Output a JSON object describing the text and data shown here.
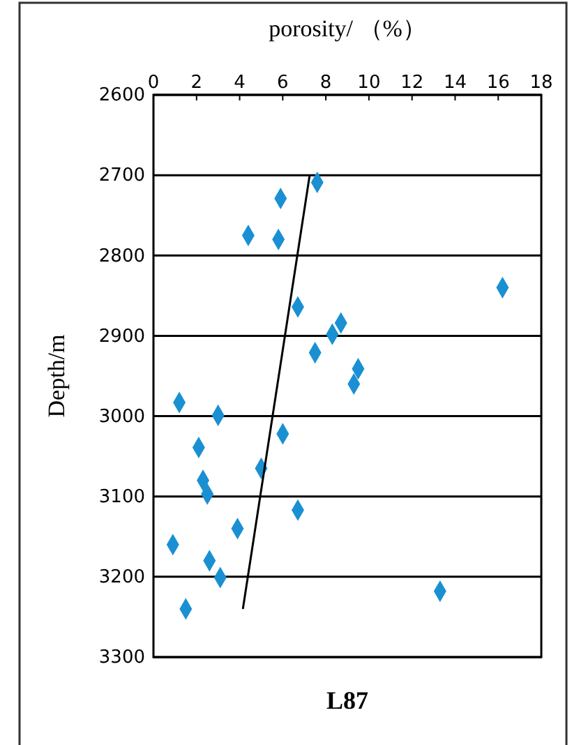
{
  "chart_data": {
    "type": "scatter",
    "title": "L87",
    "xlabel": "porosity/ （%）",
    "ylabel": "Depth/m",
    "xlim": [
      0,
      18
    ],
    "xticks": [
      0,
      2,
      4,
      6,
      8,
      10,
      12,
      14,
      16,
      18
    ],
    "ylim": [
      3300,
      2600
    ],
    "yticks": [
      2600,
      2700,
      2800,
      2900,
      3000,
      3100,
      3200,
      3300
    ],
    "grid": "y",
    "marker": "diamond",
    "series": [
      {
        "color": "#1a90d2",
        "x": [
          7.6,
          5.9,
          4.4,
          5.8,
          16.2,
          6.7,
          8.7,
          8.3,
          7.5,
          9.5,
          9.3,
          1.2,
          3.0,
          6.0,
          2.1,
          5.0,
          2.3,
          2.5,
          6.7,
          3.9,
          0.9,
          2.6,
          3.1,
          13.3,
          1.5
        ],
        "values": [
          2709,
          2729,
          2775,
          2780,
          2840,
          2864,
          2884,
          2898,
          2921,
          2941,
          2960,
          2983,
          2999,
          3022,
          3039,
          3065,
          3080,
          3097,
          3117,
          3140,
          3160,
          3180,
          3201,
          3218,
          3240
        ]
      },
      {
        "type": "line",
        "color": "#000000",
        "marker": "none",
        "x": [
          7.25,
          4.15
        ],
        "values": [
          2700,
          3240
        ]
      }
    ]
  }
}
